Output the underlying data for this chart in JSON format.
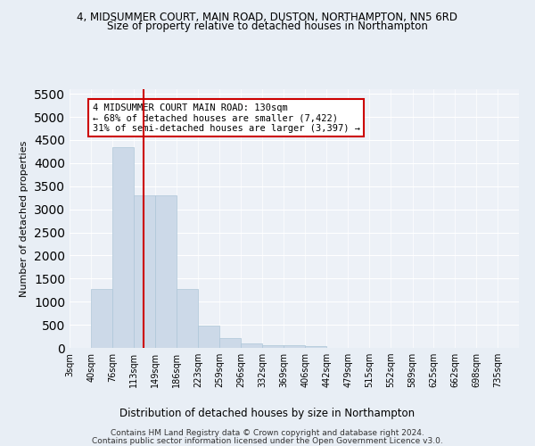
{
  "title_line1": "4, MIDSUMMER COURT, MAIN ROAD, DUSTON, NORTHAMPTON, NN5 6RD",
  "title_line2": "Size of property relative to detached houses in Northampton",
  "xlabel": "Distribution of detached houses by size in Northampton",
  "ylabel": "Number of detached properties",
  "annotation_line1": "4 MIDSUMMER COURT MAIN ROAD: 130sqm",
  "annotation_line2": "← 68% of detached houses are smaller (7,422)",
  "annotation_line3": "31% of semi-detached houses are larger (3,397) →",
  "bar_color": "#ccd9e8",
  "bar_edge_color": "#aec6d8",
  "vline_color": "#cc0000",
  "vline_x": 130,
  "annotation_box_color": "#cc0000",
  "categories": [
    "3sqm",
    "40sqm",
    "76sqm",
    "113sqm",
    "149sqm",
    "186sqm",
    "223sqm",
    "259sqm",
    "296sqm",
    "332sqm",
    "369sqm",
    "406sqm",
    "442sqm",
    "479sqm",
    "515sqm",
    "552sqm",
    "589sqm",
    "625sqm",
    "662sqm",
    "698sqm",
    "735sqm"
  ],
  "bin_edges": [
    3,
    40,
    76,
    113,
    149,
    186,
    223,
    259,
    296,
    332,
    369,
    406,
    442,
    479,
    515,
    552,
    589,
    625,
    662,
    698,
    735,
    771
  ],
  "values": [
    0,
    1270,
    4350,
    3300,
    3300,
    1280,
    490,
    220,
    90,
    60,
    55,
    45,
    0,
    0,
    0,
    0,
    0,
    0,
    0,
    0,
    0
  ],
  "ylim": [
    0,
    5600
  ],
  "yticks": [
    0,
    500,
    1000,
    1500,
    2000,
    2500,
    3000,
    3500,
    4000,
    4500,
    5000,
    5500
  ],
  "footer_line1": "Contains HM Land Registry data © Crown copyright and database right 2024.",
  "footer_line2": "Contains public sector information licensed under the Open Government Licence v3.0.",
  "bg_color": "#e8eef5",
  "plot_bg_color": "#edf1f7"
}
